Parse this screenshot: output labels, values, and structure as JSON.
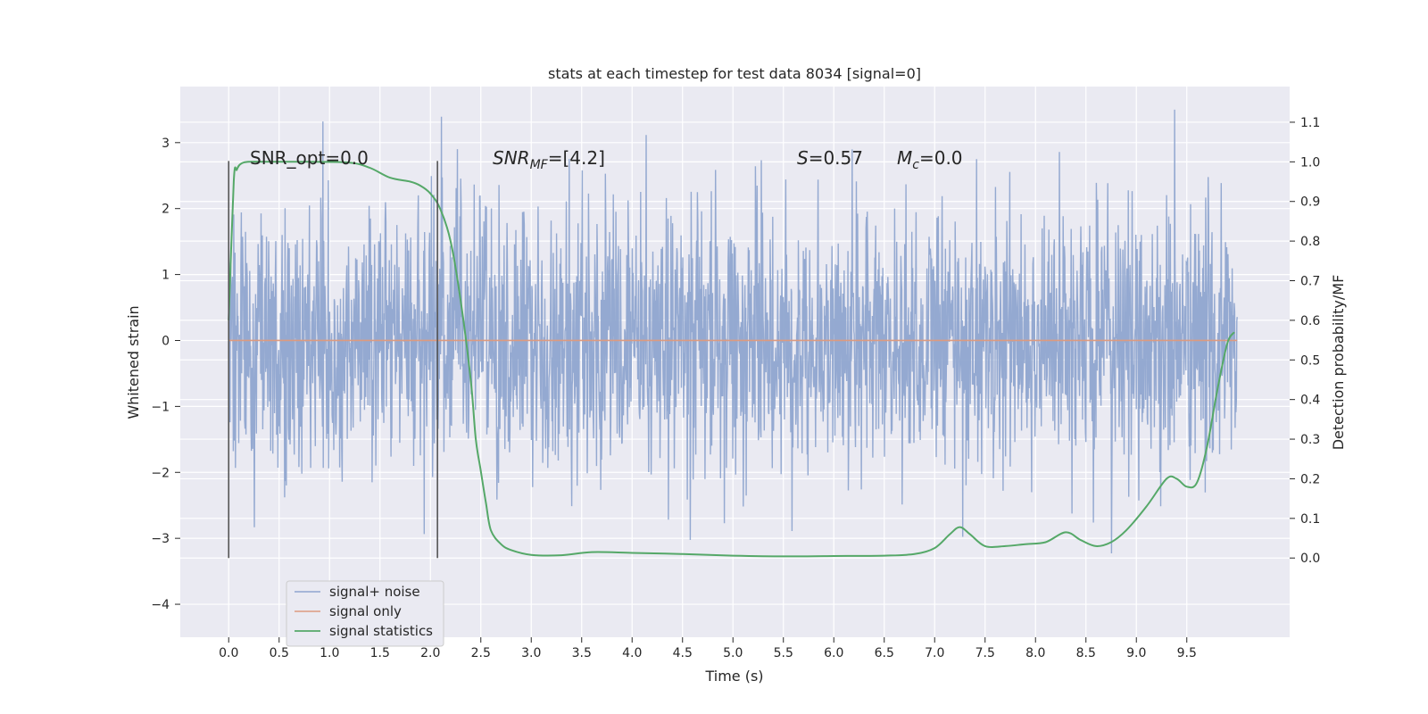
{
  "chart_data": {
    "type": "line",
    "title": "stats at each timestep for test data 8034 [signal=0]",
    "xlabel": "Time (s)",
    "ylabel": "Whitened strain",
    "ylabel_right": "Detection probability/MF",
    "xlim": [
      -0.48,
      10.52
    ],
    "ylim": [
      -4.5,
      3.85
    ],
    "ylim_right": [
      -0.2,
      1.19
    ],
    "x_ticks": [
      "0.0",
      "0.5",
      "1.0",
      "1.5",
      "2.0",
      "2.5",
      "3.0",
      "3.5",
      "4.0",
      "4.5",
      "5.0",
      "5.5",
      "6.0",
      "6.5",
      "7.0",
      "7.5",
      "8.0",
      "8.5",
      "9.0",
      "9.5"
    ],
    "y_ticks": [
      "3",
      "2",
      "1",
      "0",
      "−1",
      "−2",
      "−3",
      "−4"
    ],
    "y_ticks_right": [
      "1.1",
      "1.0",
      "0.9",
      "0.8",
      "0.7",
      "0.6",
      "0.5",
      "0.4",
      "0.3",
      "0.2",
      "0.1",
      "0.0"
    ],
    "grid": true,
    "legend_position": "lower-left",
    "colors": {
      "background": "#eaeaf2",
      "grid": "#ffffff",
      "noise": "#8fa5cf",
      "signal": "#dd9a7f",
      "stats": "#55a868",
      "marker": "#555555"
    },
    "annotations": {
      "snr_opt": "SNR_opt=0.0",
      "snr_mf_sym": "SNR",
      "snr_mf_sub": "MF",
      "snr_mf_val": "=[4.2]",
      "s_sym": "S",
      "s_val": "=0.57",
      "mc_sym": "M",
      "mc_sub": "c",
      "mc_val": "=0.0"
    },
    "series": [
      {
        "name": "signal+ noise",
        "values": "noise time series, approx. standard normal, 0–10 s",
        "axis": "left"
      },
      {
        "name": "signal only",
        "x": [
          0,
          10
        ],
        "y": [
          0,
          0
        ],
        "axis": "left"
      },
      {
        "name": "signal statistics",
        "axis": "right",
        "x": [
          0.0,
          0.05,
          0.08,
          0.12,
          0.2,
          0.4,
          0.8,
          1.2,
          1.4,
          1.6,
          1.8,
          1.9,
          2.0,
          2.1,
          2.2,
          2.3,
          2.4,
          2.45,
          2.5,
          2.55,
          2.6,
          2.7,
          2.8,
          3.0,
          3.3,
          3.6,
          4.0,
          4.5,
          5.0,
          5.5,
          6.0,
          6.5,
          6.8,
          7.0,
          7.15,
          7.25,
          7.35,
          7.5,
          7.7,
          7.9,
          8.1,
          8.3,
          8.45,
          8.6,
          8.75,
          8.9,
          9.1,
          9.3,
          9.4,
          9.5,
          9.6,
          9.7,
          9.8,
          9.9,
          9.97
        ],
        "y": [
          0.6,
          0.95,
          0.98,
          0.995,
          1.0,
          1.0,
          1.0,
          0.998,
          0.985,
          0.96,
          0.95,
          0.94,
          0.92,
          0.88,
          0.8,
          0.65,
          0.45,
          0.3,
          0.22,
          0.14,
          0.07,
          0.035,
          0.02,
          0.008,
          0.007,
          0.015,
          0.013,
          0.01,
          0.006,
          0.004,
          0.005,
          0.006,
          0.01,
          0.025,
          0.06,
          0.078,
          0.06,
          0.03,
          0.03,
          0.035,
          0.04,
          0.065,
          0.045,
          0.03,
          0.04,
          0.07,
          0.13,
          0.2,
          0.2,
          0.18,
          0.19,
          0.28,
          0.42,
          0.54,
          0.57
        ]
      }
    ],
    "legend": [
      "signal+ noise",
      "signal only",
      "signal statistics"
    ]
  }
}
